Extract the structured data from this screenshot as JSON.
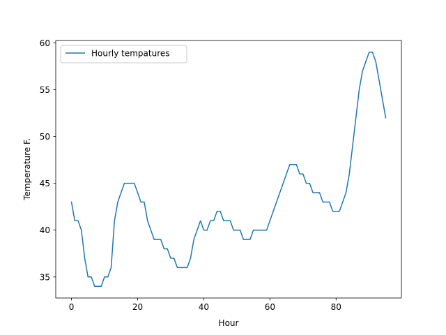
{
  "chart_data": {
    "type": "line",
    "title": "",
    "xlabel": "Hour",
    "ylabel": "Temperature F.",
    "xlim": [
      -4.75,
      99.75
    ],
    "ylim": [
      32.75,
      60.25
    ],
    "xticks": [
      0,
      20,
      40,
      60,
      80
    ],
    "yticks": [
      35,
      40,
      45,
      50,
      55,
      60
    ],
    "legend": "upper-left",
    "grid": false,
    "series": [
      {
        "name": "Hourly tempatures",
        "color": "#1f77b4",
        "x": [
          0,
          1,
          2,
          3,
          4,
          5,
          6,
          7,
          8,
          9,
          10,
          11,
          12,
          13,
          14,
          15,
          16,
          17,
          18,
          19,
          20,
          21,
          22,
          23,
          24,
          25,
          26,
          27,
          28,
          29,
          30,
          31,
          32,
          33,
          34,
          35,
          36,
          37,
          38,
          39,
          40,
          41,
          42,
          43,
          44,
          45,
          46,
          47,
          48,
          49,
          50,
          51,
          52,
          53,
          54,
          55,
          56,
          57,
          58,
          59,
          60,
          61,
          62,
          63,
          64,
          65,
          66,
          67,
          68,
          69,
          70,
          71,
          72,
          73,
          74,
          75,
          76,
          77,
          78,
          79,
          80,
          81,
          82,
          83,
          84,
          85,
          86,
          87,
          88,
          89,
          90,
          91,
          92,
          93,
          94,
          95
        ],
        "y": [
          43,
          41,
          41,
          40,
          37,
          35,
          35,
          34,
          34,
          34,
          35,
          35,
          36,
          41,
          43,
          44,
          45,
          45,
          45,
          45,
          44,
          43,
          43,
          41,
          40,
          39,
          39,
          39,
          38,
          38,
          37,
          37,
          36,
          36,
          36,
          36,
          37,
          39,
          40,
          41,
          40,
          40,
          41,
          41,
          42,
          42,
          41,
          41,
          41,
          40,
          40,
          40,
          39,
          39,
          39,
          40,
          40,
          40,
          40,
          40,
          41,
          42,
          43,
          44,
          45,
          46,
          47,
          47,
          47,
          46,
          46,
          45,
          45,
          44,
          44,
          44,
          43,
          43,
          43,
          42,
          42,
          42,
          43,
          44,
          46,
          49,
          52,
          55,
          57,
          58,
          59,
          59,
          58,
          56,
          54,
          52
        ]
      }
    ]
  }
}
